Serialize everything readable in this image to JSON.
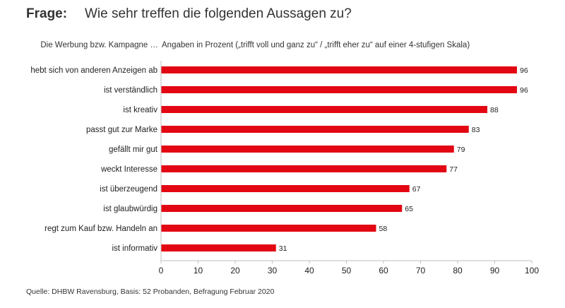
{
  "header": {
    "question_label": "Frage:",
    "question_text": "Wie sehr treffen die folgenden Aussagen zu?",
    "stem": "Die Werbung bzw. Kampagne …",
    "unit_note": "Angaben in Prozent („trifft voll und ganz zu“ / „trifft eher zu“ auf einer 4-stufigen Skala)"
  },
  "footer": {
    "source": "Quelle: DHBW Ravensburg, Basis: 52 Probanden, Befragung Februar 2020"
  },
  "chart_data": {
    "type": "bar",
    "orientation": "horizontal",
    "title": "Wie sehr treffen die folgenden Aussagen zu?",
    "xlabel": "",
    "ylabel": "",
    "categories": [
      "hebt sich von anderen Anzeigen ab",
      "ist verständlich",
      "ist kreativ",
      "passt gut zur Marke",
      "gefällt mir gut",
      "weckt Interesse",
      "ist überzeugend",
      "ist glaubwürdig",
      "regt zum Kauf bzw. Handeln an",
      "ist informativ"
    ],
    "values": [
      96,
      96,
      88,
      83,
      79,
      77,
      67,
      65,
      58,
      31
    ],
    "xlim": [
      0,
      100
    ],
    "xticks": [
      0,
      10,
      20,
      30,
      40,
      50,
      60,
      70,
      80,
      90,
      100
    ],
    "bar_color": "#e30613",
    "axis_color": "#bfbfbf",
    "grid": false,
    "legend": "none"
  }
}
